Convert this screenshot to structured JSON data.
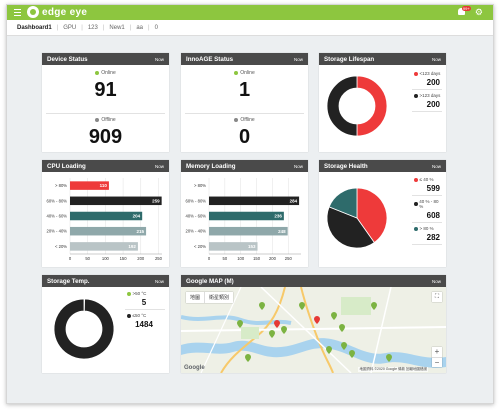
{
  "app": {
    "logo_text": "edge eye",
    "notification_badge": "99+",
    "brand_color": "#8dc63f"
  },
  "tabs": [
    {
      "label": "Dashboard1",
      "active": true
    },
    {
      "label": "GPU"
    },
    {
      "label": "123"
    },
    {
      "label": "New1"
    },
    {
      "label": "aa"
    },
    {
      "label": "0"
    }
  ],
  "device_status": {
    "title": "Device Status",
    "tag": "Now",
    "online_label": "Online",
    "online_value": "91",
    "offline_label": "Offline",
    "offline_value": "909"
  },
  "innoage_status": {
    "title": "InnoAGE Status",
    "tag": "Now",
    "online_label": "Online",
    "online_value": "1",
    "offline_label": "Offline",
    "offline_value": "0"
  },
  "storage_lifespan": {
    "title": "Storage Lifespan",
    "tag": "Now",
    "legend": [
      {
        "label": "<123 days",
        "value": "200",
        "color": "#ee3a3a"
      },
      {
        "label": ">123 days",
        "value": "200",
        "color": "#222222"
      }
    ]
  },
  "cpu_loading": {
    "title": "CPU Loading",
    "tag": "Now"
  },
  "memory_loading": {
    "title": "Memory Loading",
    "tag": "Now"
  },
  "storage_health": {
    "title": "Storage Health",
    "tag": "Now",
    "legend": [
      {
        "label": "≤ 40 %",
        "value": "599",
        "color": "#ee3a3a"
      },
      {
        "label": "40 % - 80 %",
        "value": "608",
        "color": "#222222"
      },
      {
        "label": "> 80 %",
        "value": "282",
        "color": "#2e6b6b"
      }
    ]
  },
  "storage_temp": {
    "title": "Storage Temp.",
    "tag": "Now",
    "legend": [
      {
        "label": ">50 °C",
        "value": "5",
        "color": "#8dc63f"
      },
      {
        "label": "≤50 °C",
        "value": "1484",
        "color": "#222222"
      }
    ]
  },
  "google_map": {
    "title": "Google MAP (M)",
    "tag": "Now",
    "map_type_map": "地圖",
    "map_type_satellite": "衛星類別",
    "google_logo": "Google",
    "attribution": "地圖資料 ©2020 Google   條款   回報地圖錯誤",
    "zoom_in": "+",
    "zoom_out": "−",
    "fullscreen": "⛶"
  },
  "chart_data": [
    {
      "type": "bar",
      "title": "CPU Loading",
      "orientation": "horizontal",
      "categories": [
        "> 80%",
        "60% - 80%",
        "40% - 60%",
        "20% - 40%",
        "< 20%"
      ],
      "values": [
        110,
        259,
        204,
        215,
        192
      ],
      "colors": [
        "#ee3a3a",
        "#222222",
        "#2e6b6b",
        "#8fa8aa",
        "#b9c4c6"
      ],
      "xticks": [
        0,
        50,
        100,
        150,
        200,
        250
      ],
      "xlim": [
        0,
        260
      ],
      "grid": true
    },
    {
      "type": "bar",
      "title": "Memory Loading",
      "orientation": "horizontal",
      "categories": [
        "> 80%",
        "60% - 80%",
        "40% - 60%",
        "20% - 40%",
        "< 20%"
      ],
      "values": [
        0,
        284,
        236,
        248,
        153
      ],
      "colors": [
        "#ee3a3a",
        "#222222",
        "#2e6b6b",
        "#8fa8aa",
        "#b9c4c6"
      ],
      "xticks": [
        0,
        50,
        100,
        150,
        200,
        250
      ],
      "xlim": [
        0,
        290
      ],
      "grid": true
    },
    {
      "type": "pie",
      "title": "Storage Lifespan",
      "donut": true,
      "labels": [
        "<123 days",
        ">123 days"
      ],
      "values": [
        200,
        200
      ],
      "colors": [
        "#ee3a3a",
        "#222222"
      ]
    },
    {
      "type": "pie",
      "title": "Storage Health",
      "labels": [
        "≤ 40 %",
        "40 % - 80 %",
        "> 80 %"
      ],
      "values": [
        599,
        608,
        282
      ],
      "colors": [
        "#ee3a3a",
        "#222222",
        "#2e6b6b"
      ]
    },
    {
      "type": "pie",
      "title": "Storage Temp.",
      "donut": true,
      "labels": [
        ">50 °C",
        "≤50 °C"
      ],
      "values": [
        5,
        1484
      ],
      "colors": [
        "#8dc63f",
        "#222222"
      ]
    }
  ]
}
